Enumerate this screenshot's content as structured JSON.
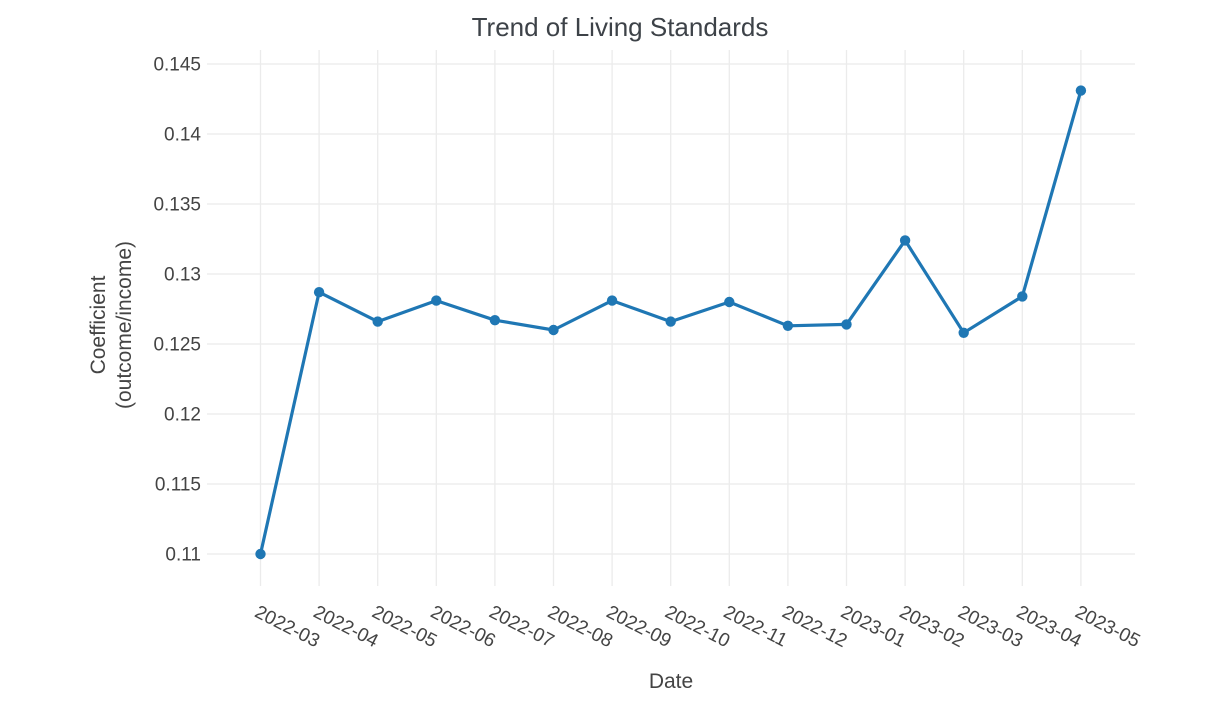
{
  "page": {
    "title": "Trend of Living Standards"
  },
  "chart_data": {
    "type": "line",
    "title": "Trend of Living Standards",
    "xlabel": "Date",
    "ylabel": "Coefficient (outcome/income)",
    "ylabel_lines": [
      "Coefficient",
      "(outcome/income)"
    ],
    "categories": [
      "2022-03",
      "2022-04",
      "2022-05",
      "2022-06",
      "2022-07",
      "2022-08",
      "2022-09",
      "2022-10",
      "2022-11",
      "2022-12",
      "2023-01",
      "2023-02",
      "2023-03",
      "2023-04",
      "2023-05"
    ],
    "values": [
      0.11,
      0.1287,
      0.1266,
      0.1281,
      0.1267,
      0.126,
      0.1281,
      0.1266,
      0.128,
      0.1263,
      0.1264,
      0.1324,
      0.1258,
      0.1284,
      0.1431
    ],
    "series_name": "Coefficient (outcome/income)",
    "yticks": [
      0.11,
      0.115,
      0.12,
      0.125,
      0.13,
      0.135,
      0.14,
      0.145
    ],
    "ytick_labels": [
      "0.11",
      "0.115",
      "0.12",
      "0.125",
      "0.13",
      "0.135",
      "0.14",
      "0.145"
    ],
    "ylim": [
      0.1077,
      0.1459
    ],
    "x_tick_angle": 27,
    "grid": true,
    "legend": false,
    "colors": {
      "line": "#1f77b4",
      "marker": "#1f77b4",
      "grid": "#ebebeb",
      "tick_text": "#444444",
      "title_text": "#3d4248",
      "background": "#ffffff"
    }
  }
}
